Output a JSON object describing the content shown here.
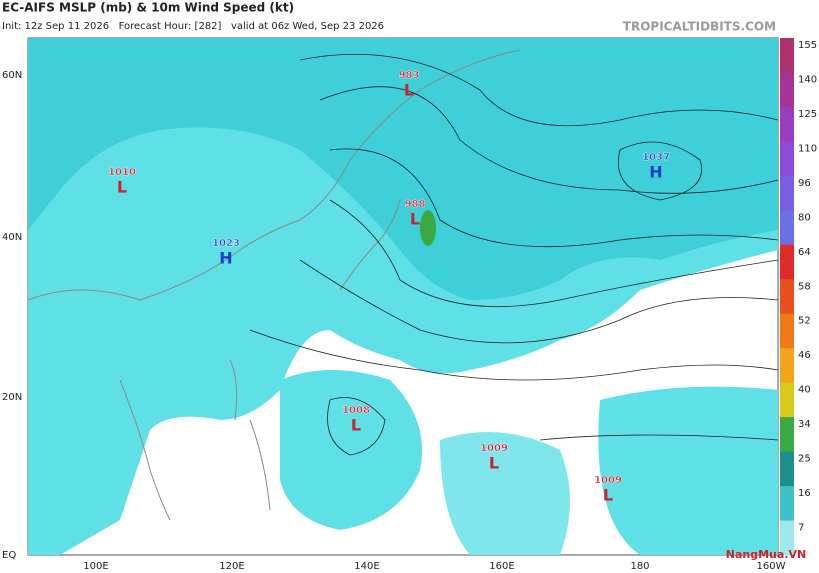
{
  "header": {
    "title": "EC-AIFS MSLP (mb) & 10m Wind Speed (kt)",
    "subtitle": "Init: 12z Sep 11 2026   Forecast Hour: [282]   valid at 06z Wed, Sep 23 2026",
    "site": "TROPICALTIDBITS.COM"
  },
  "lat_labels": [
    "60N",
    "40N",
    "20N",
    "EQ"
  ],
  "lon_labels": [
    "100E",
    "120E",
    "140E",
    "160E",
    "180",
    "160W"
  ],
  "colorbar": {
    "labels": [
      "155",
      "140",
      "125",
      "110",
      "96",
      "80",
      "64",
      "58",
      "52",
      "46",
      "40",
      "34",
      "25",
      "16",
      "7"
    ],
    "colors": [
      "#b0306e",
      "#a63399",
      "#9b3cbf",
      "#8c4bd6",
      "#7a5de0",
      "#6a6fe6",
      "#e02a2a",
      "#e8501f",
      "#ef7a1a",
      "#f3a41a",
      "#d8c81c",
      "#3aa843",
      "#1b8f8c",
      "#40c1c8",
      "#9fe8ec"
    ]
  },
  "centers": [
    {
      "value": "1010",
      "symbol": "L",
      "color": "#d0202a"
    },
    {
      "value": "1023",
      "symbol": "H",
      "color": "#1d3fc4"
    },
    {
      "value": "983",
      "symbol": "L",
      "color": "#d0202a"
    },
    {
      "value": "988",
      "symbol": "L",
      "color": "#d0202a"
    },
    {
      "value": "1037",
      "symbol": "H",
      "color": "#1d3fc4"
    },
    {
      "value": "1008",
      "symbol": "L",
      "color": "#d0202a"
    },
    {
      "value": "1009",
      "symbol": "L",
      "color": "#d0202a"
    },
    {
      "value": "1009",
      "symbol": "L",
      "color": "#d0202a"
    }
  ],
  "watermark": "NangMua.VN"
}
